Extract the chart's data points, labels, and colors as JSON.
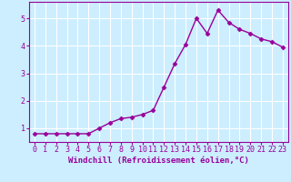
{
  "x": [
    0,
    1,
    2,
    3,
    4,
    5,
    6,
    7,
    8,
    9,
    10,
    11,
    12,
    13,
    14,
    15,
    16,
    17,
    18,
    19,
    20,
    21,
    22,
    23
  ],
  "y": [
    0.8,
    0.8,
    0.8,
    0.8,
    0.8,
    0.8,
    1.0,
    1.2,
    1.35,
    1.4,
    1.5,
    1.65,
    2.5,
    3.35,
    4.05,
    5.0,
    4.45,
    5.3,
    4.85,
    4.6,
    4.45,
    4.25,
    4.15,
    3.95
  ],
  "line_color": "#990099",
  "marker": "D",
  "marker_size": 2.5,
  "background_color": "#cceeff",
  "grid_color": "#ffffff",
  "xlabel": "Windchill (Refroidissement éolien,°C)",
  "ylabel": "",
  "xlim": [
    -0.5,
    23.5
  ],
  "ylim": [
    0.5,
    5.6
  ],
  "yticks": [
    1,
    2,
    3,
    4,
    5
  ],
  "xticks": [
    0,
    1,
    2,
    3,
    4,
    5,
    6,
    7,
    8,
    9,
    10,
    11,
    12,
    13,
    14,
    15,
    16,
    17,
    18,
    19,
    20,
    21,
    22,
    23
  ],
  "xlabel_fontsize": 6.5,
  "tick_fontsize": 6,
  "line_width": 1.0
}
